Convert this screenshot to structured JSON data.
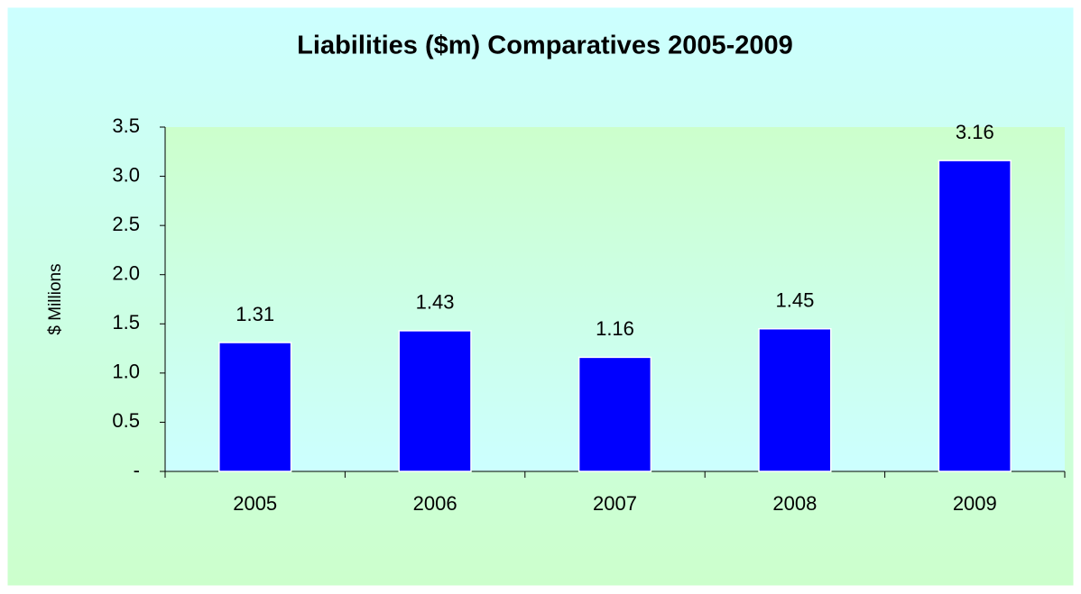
{
  "chart_data": {
    "type": "bar",
    "title": "Liabilities ($m) Comparatives 2005-2009",
    "y_label": "$ Millions",
    "categories": [
      "2005",
      "2006",
      "2007",
      "2008",
      "2009"
    ],
    "values": [
      1.31,
      1.43,
      1.16,
      1.45,
      3.16
    ],
    "value_labels": [
      "1.31",
      "1.43",
      "1.16",
      "1.45",
      "3.16"
    ],
    "color": "#0000ff",
    "ylim": [
      0,
      3.5
    ],
    "yticks": [
      {
        "value": 0,
        "label": "-"
      },
      0.5,
      {
        "value": 1,
        "label": "1.0"
      },
      1.5,
      {
        "value": 2,
        "label": "2.0"
      },
      2.5,
      {
        "value": 3,
        "label": "3.0"
      },
      3.5
    ],
    "grid": false
  }
}
